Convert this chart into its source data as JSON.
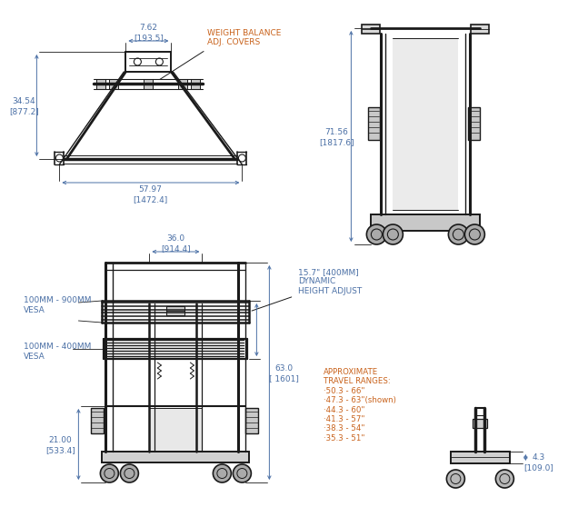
{
  "bg_color": "#ffffff",
  "line_color": "#1a1a1a",
  "dim_color": "#4a6fa5",
  "label_color": "#c8611a",
  "dims": {
    "top_width": "7.62\n[193.5]",
    "total_width": "57.97\n[1472.4]",
    "height_left": "34.54\n[877.2]",
    "front_width": "36.0\n[914.4]",
    "right_height": "71.56\n[1817.6]",
    "cart_height": "63.0\n[ 1601]",
    "base_height": "21.00\n[533.4]",
    "bottom_dim": "4.3\n[109.0]"
  },
  "annotations": {
    "weight_balance": "WEIGHT BALANCE\nADJ. COVERS",
    "dynamic_height": "15.7\" [400MM]\nDYNAMIC\nHEIGHT ADJUST",
    "vesa_top": "100MM - 900MM\nVESA",
    "vesa_bottom": "100MM - 400MM\nVESA",
    "travel_ranges": "APPROXIMATE\nTRAVEL RANGES:\n·50.3 - 66\"\n·47.3 - 63\"(shown)\n·44.3 - 60\"\n·41.3 - 57\"\n·38.3 - 54\"\n·35.3 - 51\""
  }
}
